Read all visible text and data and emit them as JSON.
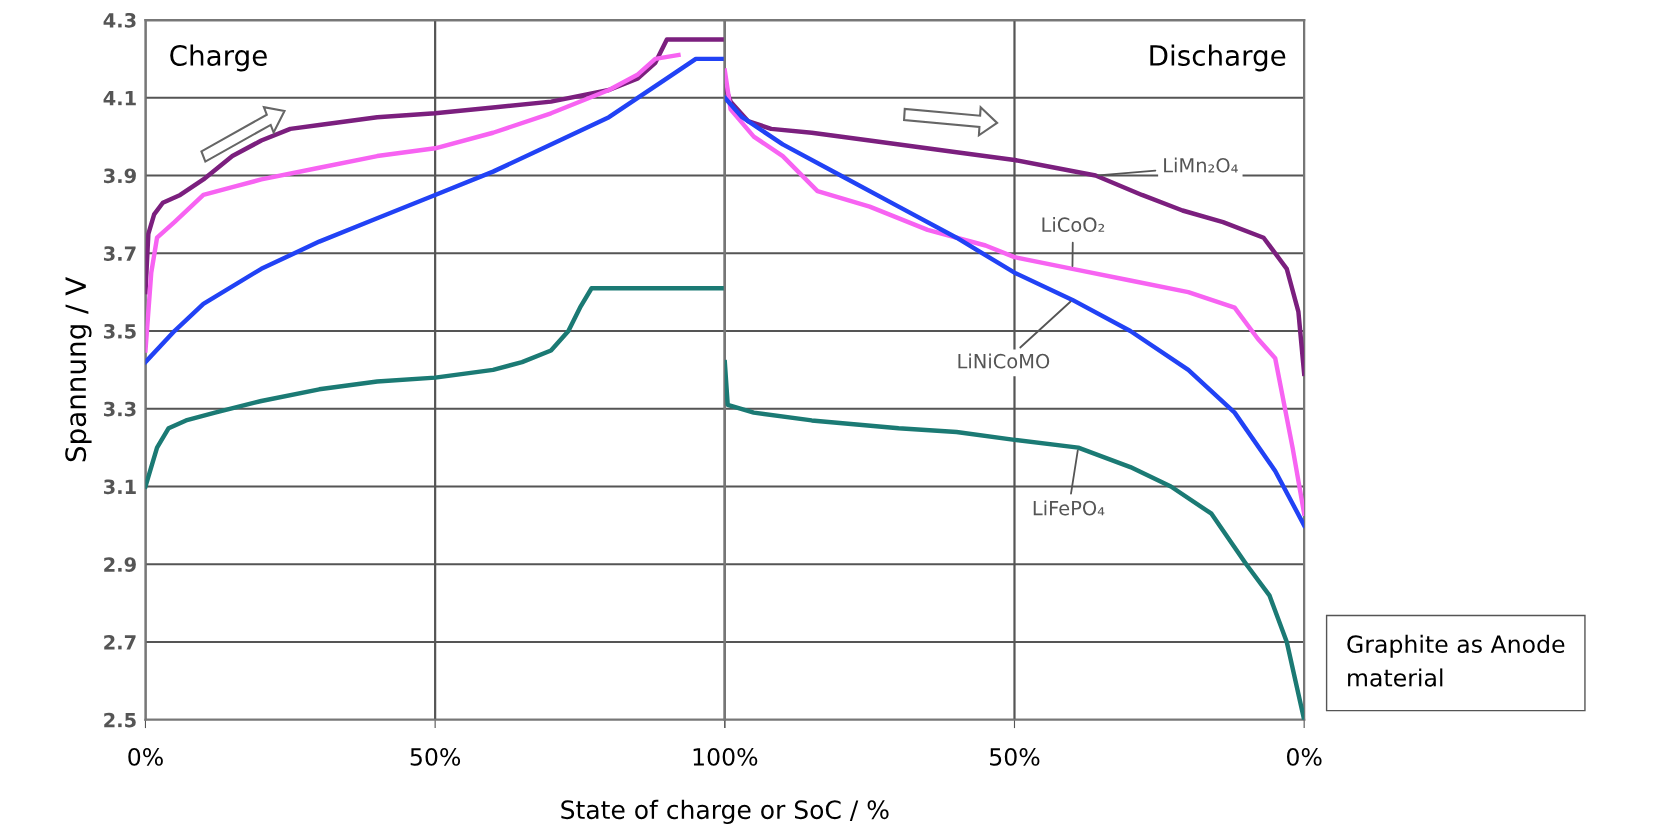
{
  "chart_data": [
    {
      "type": "line",
      "xlabel": "State of charge or SoC / %",
      "ylabel": "Spannung / V",
      "xlim": [
        0,
        100
      ],
      "ylim": [
        2.5,
        4.3
      ],
      "xticks": [
        {
          "value": 0,
          "label": "0%"
        },
        {
          "value": 50,
          "label": "50%"
        },
        {
          "value": 100,
          "label": null
        }
      ],
      "yticks": [
        2.5,
        2.7,
        2.9,
        3.1,
        3.3,
        3.5,
        3.7,
        3.9,
        4.1,
        4.3
      ],
      "grid": true,
      "marker": "none",
      "line_style": "solid",
      "annotations": [
        "Charge"
      ],
      "series": [
        {
          "color": "#7b1f7e",
          "x": [
            0,
            0.5,
            1.5,
            3,
            6,
            10,
            15,
            20,
            25,
            30,
            40,
            50,
            60,
            70,
            80,
            85,
            88,
            90,
            100
          ],
          "values": [
            3.6,
            3.75,
            3.8,
            3.83,
            3.85,
            3.89,
            3.95,
            3.99,
            4.02,
            4.03,
            4.05,
            4.06,
            4.075,
            4.09,
            4.12,
            4.15,
            4.19,
            4.25,
            4.25
          ]
        },
        {
          "color": "#f763f2",
          "x": [
            0,
            1,
            2,
            5,
            10,
            15,
            20,
            30,
            40,
            50,
            60,
            70,
            80,
            85,
            88,
            92
          ],
          "values": [
            3.45,
            3.65,
            3.74,
            3.78,
            3.85,
            3.87,
            3.89,
            3.92,
            3.95,
            3.97,
            4.01,
            4.06,
            4.12,
            4.16,
            4.2,
            4.21
          ]
        },
        {
          "color": "#2142f5",
          "x": [
            0,
            5,
            10,
            20,
            30,
            40,
            50,
            60,
            70,
            80,
            90,
            95,
            100
          ],
          "values": [
            3.42,
            3.5,
            3.57,
            3.66,
            3.73,
            3.79,
            3.85,
            3.91,
            3.98,
            4.05,
            4.15,
            4.2,
            4.2
          ]
        },
        {
          "color": "#1b7a74",
          "x": [
            0,
            2,
            4,
            7,
            12,
            20,
            30,
            40,
            50,
            60,
            65,
            70,
            73,
            75,
            77,
            100
          ],
          "values": [
            3.1,
            3.2,
            3.25,
            3.27,
            3.29,
            3.32,
            3.35,
            3.37,
            3.38,
            3.4,
            3.42,
            3.45,
            3.5,
            3.56,
            3.61,
            3.61
          ]
        }
      ]
    },
    {
      "type": "line",
      "xlim": [
        100,
        0
      ],
      "ylim": [
        2.5,
        4.3
      ],
      "tick_labels": "x",
      "xticks": [
        {
          "value": 100,
          "label": "100%"
        },
        {
          "value": 50,
          "label": "50%"
        },
        {
          "value": 0,
          "label": "0%"
        }
      ],
      "yticks": [
        2.5,
        2.7,
        2.9,
        3.1,
        3.3,
        3.5,
        3.7,
        3.9,
        4.1,
        4.3
      ],
      "grid": true,
      "marker": "none",
      "line_style": "solid",
      "annotations": [
        "Discharge",
        "Graphite as Anode material"
      ],
      "series": [
        {
          "name": "LiMn₂O₄",
          "color": "#7b1f7e",
          "x": [
            100,
            99,
            96,
            92,
            85,
            75,
            60,
            50,
            43,
            36,
            28,
            21,
            14,
            7,
            3,
            1,
            0
          ],
          "values": [
            4.13,
            4.09,
            4.04,
            4.02,
            4.01,
            3.99,
            3.96,
            3.94,
            3.92,
            3.9,
            3.85,
            3.81,
            3.78,
            3.74,
            3.66,
            3.55,
            3.39
          ]
        },
        {
          "name": "LiCoO₂",
          "color": "#f763f2",
          "x": [
            100,
            99,
            95,
            90,
            84,
            75,
            65,
            55,
            50,
            40,
            30,
            20,
            12,
            8,
            5,
            2,
            0
          ],
          "values": [
            4.17,
            4.07,
            4.0,
            3.95,
            3.86,
            3.82,
            3.76,
            3.72,
            3.69,
            3.66,
            3.63,
            3.6,
            3.56,
            3.48,
            3.43,
            3.2,
            3.03
          ]
        },
        {
          "name": "LiNiCoMO",
          "color": "#2142f5",
          "x": [
            100,
            97,
            90,
            80,
            70,
            60,
            50,
            40,
            30,
            20,
            12,
            5,
            0
          ],
          "values": [
            4.1,
            4.05,
            3.98,
            3.9,
            3.82,
            3.74,
            3.65,
            3.58,
            3.5,
            3.4,
            3.29,
            3.14,
            3.0
          ]
        },
        {
          "name": "LiFePO₄",
          "color": "#1b7a74",
          "x": [
            100,
            99.5,
            95,
            85,
            70,
            60,
            50,
            39,
            30,
            23,
            16,
            10,
            6,
            3,
            0
          ],
          "values": [
            3.42,
            3.31,
            3.29,
            3.27,
            3.25,
            3.24,
            3.22,
            3.2,
            3.15,
            3.1,
            3.03,
            2.9,
            2.82,
            2.7,
            2.5
          ]
        }
      ]
    }
  ]
}
